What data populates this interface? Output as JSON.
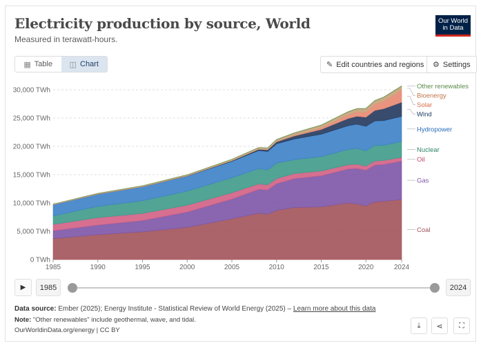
{
  "header": {
    "title": "Electricity production by source, World",
    "subtitle": "Measured in terawatt-hours.",
    "logo_line1": "Our World",
    "logo_line2": "in Data"
  },
  "tabs": [
    {
      "label": "Table",
      "icon": "table-icon",
      "active": false
    },
    {
      "label": "Chart",
      "icon": "chart-icon",
      "active": true
    }
  ],
  "toolbar": {
    "edit_label": "Edit countries and regions",
    "settings_label": "Settings"
  },
  "chart_data": {
    "type": "area",
    "stacked": true,
    "y_unit": "TWh",
    "ylim": [
      0,
      30000
    ],
    "y_ticks": [
      "0 TWh",
      "5,000 TWh",
      "10,000 TWh",
      "15,000 TWh",
      "20,000 TWh",
      "25,000 TWh",
      "30,000 TWh"
    ],
    "y_tick_values": [
      0,
      5000,
      10000,
      15000,
      20000,
      25000,
      30000
    ],
    "xlim": [
      1985,
      2024
    ],
    "x_ticks": [
      1985,
      1990,
      1995,
      2000,
      2005,
      2010,
      2015,
      2020,
      2024
    ],
    "grid": "horizontal-dashed",
    "legend_placement": "right, inline labels",
    "x": [
      1985,
      1990,
      1995,
      2000,
      2005,
      2008,
      2009,
      2010,
      2012,
      2015,
      2018,
      2019,
      2020,
      2021,
      2022,
      2024
    ],
    "series": [
      {
        "name": "Coal",
        "color": "#a2535a",
        "label_color": "#a2535a",
        "values": [
          3700,
          4400,
          4900,
          5700,
          7200,
          8200,
          8000,
          8700,
          9200,
          9300,
          10000,
          9800,
          9500,
          10200,
          10300,
          10600
        ]
      },
      {
        "name": "Gas",
        "color": "#7c55a6",
        "label_color": "#7c55a6",
        "values": [
          1400,
          1700,
          2000,
          2700,
          3500,
          4200,
          4300,
          4700,
          5100,
          5500,
          6000,
          6300,
          6300,
          6500,
          6500,
          6800
        ]
      },
      {
        "name": "Oil",
        "color": "#d25f84",
        "label_color": "#c44868",
        "values": [
          1100,
          1300,
          1250,
          1200,
          1100,
          950,
          900,
          900,
          900,
          850,
          750,
          750,
          700,
          700,
          700,
          650
        ]
      },
      {
        "name": "Nuclear",
        "color": "#3f9a8a",
        "label_color": "#2c8465",
        "values": [
          1500,
          2000,
          2250,
          2500,
          2650,
          2700,
          2650,
          2750,
          2450,
          2550,
          2700,
          2800,
          2700,
          2800,
          2700,
          2800
        ]
      },
      {
        "name": "Hydropower",
        "color": "#3c81c6",
        "label_color": "#286bbb",
        "values": [
          2000,
          2150,
          2450,
          2650,
          2900,
          3200,
          3250,
          3400,
          3650,
          3950,
          4200,
          4250,
          4350,
          4300,
          4350,
          4450
        ]
      },
      {
        "name": "Wind",
        "color": "#23395d",
        "label_color": "#1e3a66",
        "values": [
          0,
          10,
          10,
          30,
          100,
          220,
          280,
          340,
          530,
          830,
          1270,
          1420,
          1600,
          1850,
          2100,
          2500
        ]
      },
      {
        "name": "Solar",
        "color": "#e88872",
        "label_color": "#d86e4a",
        "values": [
          0,
          0,
          0,
          1,
          4,
          12,
          20,
          33,
          100,
          250,
          570,
          700,
          850,
          1030,
          1300,
          2100
        ]
      },
      {
        "name": "Bioenergy",
        "color": "#c9a079",
        "label_color": "#c0764a",
        "values": [
          80,
          120,
          150,
          160,
          230,
          270,
          290,
          330,
          390,
          480,
          560,
          590,
          620,
          650,
          680,
          700
        ]
      },
      {
        "name": "Other renewables",
        "color": "#7f9f5f",
        "label_color": "#5c8a4a",
        "values": [
          40,
          45,
          50,
          60,
          65,
          70,
          72,
          75,
          77,
          80,
          90,
          92,
          94,
          96,
          98,
          100
        ]
      }
    ]
  },
  "timeline": {
    "start_year": "1985",
    "end_year": "2024"
  },
  "footer": {
    "source_label": "Data source:",
    "source_text": "Ember (2025); Energy Institute - Statistical Review of World Energy (2025) –",
    "learn_more": "Learn more about this data",
    "note_label": "Note:",
    "note_text": "\"Other renewables\" include geothermal, wave, and tidal.",
    "credit": "OurWorldinData.org/energy | CC BY"
  },
  "icons": {
    "play": "play-icon",
    "download": "download-icon",
    "share": "share-icon",
    "fullscreen": "fullscreen-icon",
    "edit": "pencil-icon",
    "settings": "gear-icon"
  }
}
